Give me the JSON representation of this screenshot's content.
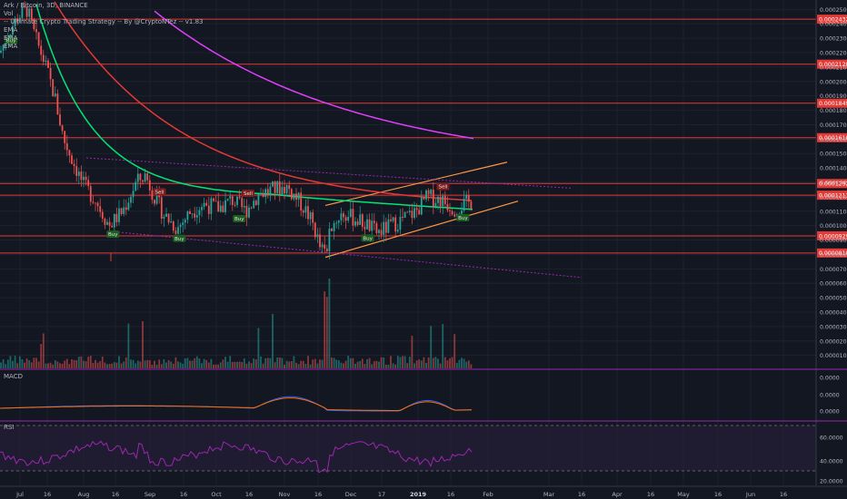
{
  "header": {
    "symbol": "Ark / Bitcoin, 3D, BINANCE",
    "vol_label": "Vol",
    "strategy_label": "-- Ultimate Crypto Trading Strategy -- By @CryptoNTez -- v1.83",
    "ema_labels": [
      "EMA",
      "EMA",
      "EMA"
    ]
  },
  "panes": {
    "macd_label": "MACD",
    "rsi_label": "RSI"
  },
  "colors": {
    "background": "#131722",
    "up": "#26a69a",
    "down": "#ef5350",
    "ema_fast": "#00e676",
    "ema_mid": "#e53935",
    "ema_slow": "#e040fb",
    "hline": "#e53935",
    "trend_channel": "#ff9844",
    "dotted_channel": "#9c27b0",
    "buy_badge": "#1b5e20",
    "sell_badge": "#7f1d1d",
    "macd_line": "#2962ff",
    "signal_line": "#ff6d00",
    "rsi_line": "#9c27b0"
  },
  "chart_data": {
    "type": "candlestick",
    "price_axis": {
      "ticks": [
        "0.0002500",
        "0.0002400",
        "0.0002300",
        "0.0002200",
        "0.0002100",
        "0.0002000",
        "0.0001900",
        "0.0001800",
        "0.0001700",
        "0.0001600",
        "0.0001500",
        "0.0001400",
        "0.0001300",
        "0.0001200",
        "0.0001100",
        "0.0001000",
        "0.0000900",
        "0.0000800",
        "0.0000700",
        "0.0000600",
        "0.0000500",
        "0.0000400",
        "0.0000300",
        "0.0000200",
        "0.0000100"
      ],
      "range": [
        6e-06,
        0.000254
      ]
    },
    "horizontal_levels": [
      "0.0002432",
      "0.0002120",
      "0.0001849",
      "0.0001610",
      "0.0001292",
      "0.0001211",
      "0.0000929",
      "0.0000810"
    ],
    "time_axis": [
      "Jul",
      "16",
      "Aug",
      "16",
      "Sep",
      "16",
      "Oct",
      "16",
      "Nov",
      "16",
      "Dec",
      "17",
      "2019",
      "16",
      "Feb",
      "Mar",
      "16",
      "Apr",
      "16",
      "May",
      "16",
      "Jun",
      "16"
    ],
    "signals": [
      {
        "label": "Buy",
        "type": "buy",
        "date": "2018-07-01"
      },
      {
        "label": "Buy",
        "type": "buy",
        "date": "2018-08-16"
      },
      {
        "label": "Sell",
        "type": "sell",
        "date": "2018-09-06"
      },
      {
        "label": "Buy",
        "type": "buy",
        "date": "2018-09-15"
      },
      {
        "label": "Buy",
        "type": "buy",
        "date": "2018-10-12"
      },
      {
        "label": "Sell",
        "type": "sell",
        "date": "2018-10-16"
      },
      {
        "label": "Buy",
        "type": "buy",
        "date": "2018-12-09"
      },
      {
        "label": "Sell",
        "type": "sell",
        "date": "2019-01-12"
      },
      {
        "label": "Buy",
        "type": "buy",
        "date": "2019-01-21"
      }
    ],
    "macd_axis": [
      "0.0000",
      "0.0000",
      "0.0000"
    ],
    "rsi_axis": [
      "60.0000",
      "40.0000",
      "20.0000"
    ]
  }
}
